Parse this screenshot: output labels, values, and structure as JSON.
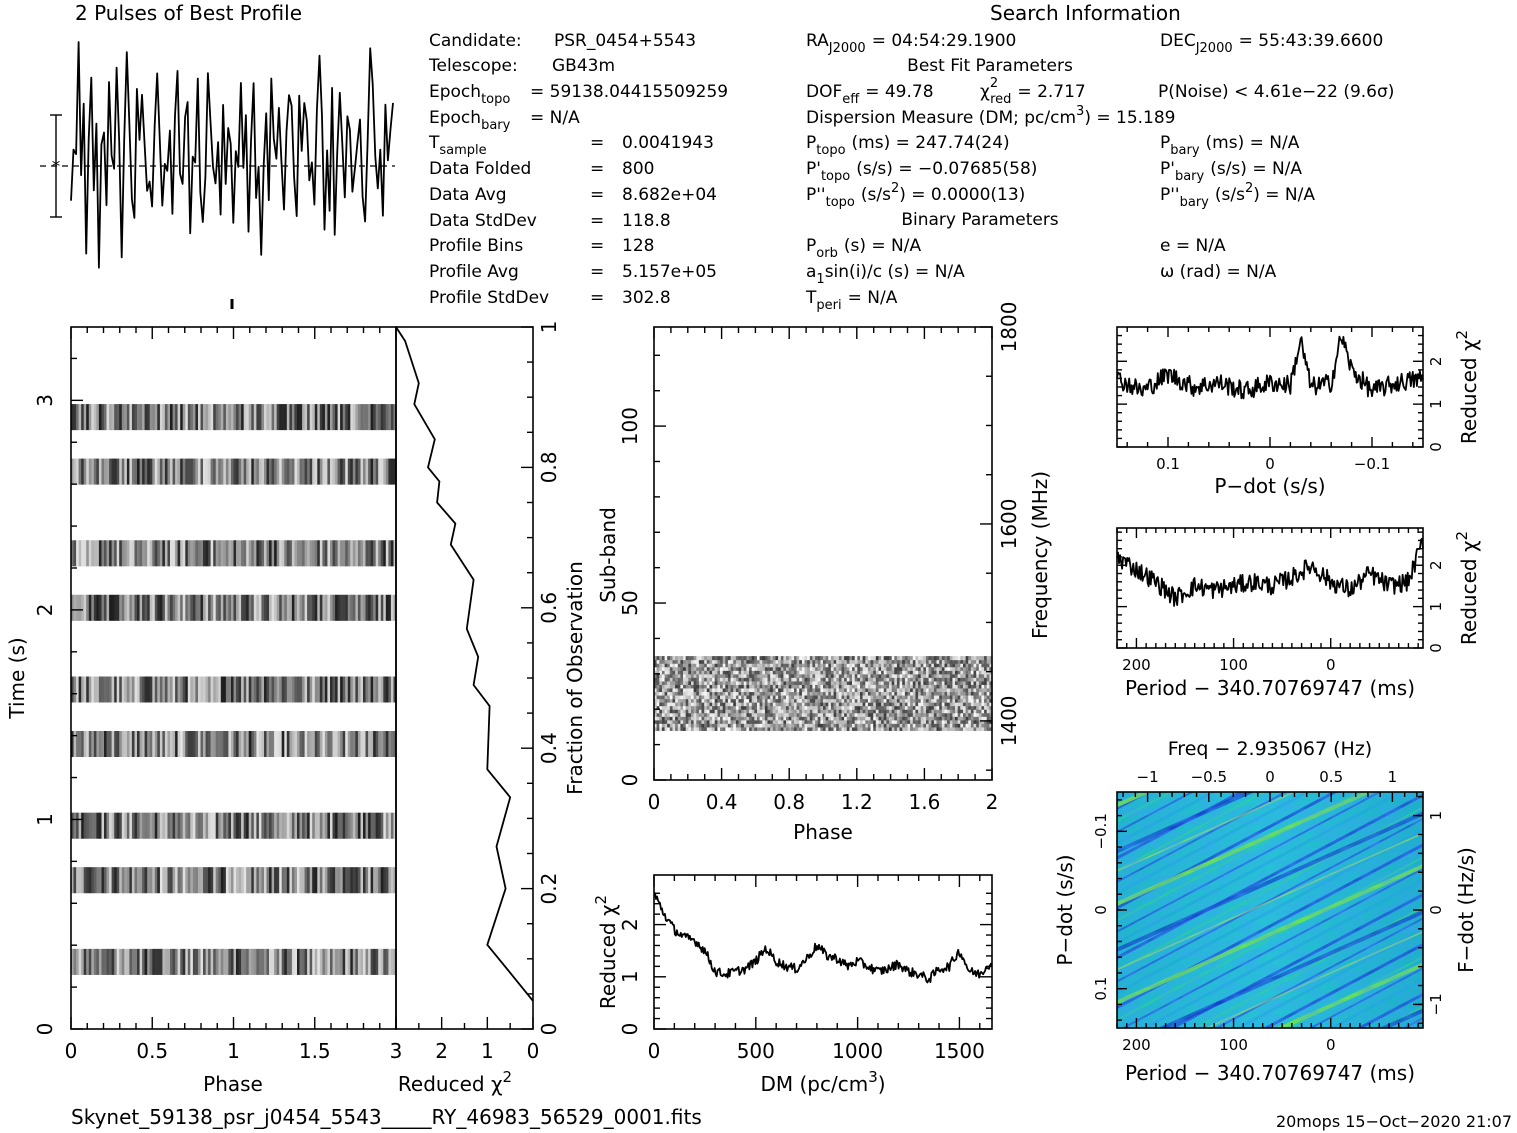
{
  "profile_title": "2 Pulses of Best Profile",
  "search_title": "Search Information",
  "candidate": {
    "label": "Candidate:",
    "value": "PSR_0454+5543"
  },
  "telescope": {
    "label": "Telescope:",
    "value": "GB43m"
  },
  "epoch_topo": {
    "main": "Epoch",
    "sub": "topo",
    "value": "= 59138.04415509259"
  },
  "epoch_bary": {
    "main": "Epoch",
    "sub": "bary",
    "value": "= N/A"
  },
  "t_sample": {
    "main": "T",
    "sub": "sample",
    "eq": "=",
    "value": "0.0041943"
  },
  "data_folded": {
    "label": "Data Folded",
    "eq": "=",
    "value": "800"
  },
  "data_avg": {
    "label": "Data Avg",
    "eq": "=",
    "value": "8.682e+04"
  },
  "data_stddev": {
    "label": "Data StdDev",
    "eq": "=",
    "value": "118.8"
  },
  "profile_bins": {
    "label": "Profile Bins",
    "eq": "=",
    "value": "128"
  },
  "profile_avg": {
    "label": "Profile Avg",
    "eq": "=",
    "value": "5.157e+05"
  },
  "profile_stddev": {
    "label": "Profile StdDev",
    "eq": "=",
    "value": "302.8"
  },
  "ra": {
    "main": "RA",
    "sub": "J2000",
    "value": "= 04:54:29.1900"
  },
  "dec": {
    "main": "DEC",
    "sub": "J2000",
    "value": "= 55:43:39.6600"
  },
  "best_fit_title": "Best Fit Parameters",
  "dof": {
    "main": "DOF",
    "sub": "eff",
    "value": "= 49.78"
  },
  "chi2": {
    "main": "χ",
    "sup": "2",
    "sub": "red",
    "value": "= 2.717"
  },
  "pnoise": "P(Noise) < 4.61e−22   (9.6σ)",
  "dm_line": {
    "pre": "Dispersion Measure (DM; pc/cm",
    "sup": "3",
    "post": ") = 15.189"
  },
  "p_topo": {
    "main": "P",
    "sub": "topo",
    "value": "(ms) =  247.74(24)"
  },
  "pd_topo": {
    "main": "P'",
    "sub": "topo",
    "value": "(s/s) = −0.07685(58)"
  },
  "pdd_topo": {
    "main": "P''",
    "sub": "topo",
    "value": "(s/s",
    "sup": "2",
    "post": ") =  0.0000(13)"
  },
  "p_bary": {
    "main": "P",
    "sub": "bary",
    "value": "(ms) = N/A"
  },
  "pd_bary": {
    "main": "P'",
    "sub": "bary",
    "value": "(s/s) = N/A"
  },
  "pdd_bary": {
    "main": "P''",
    "sub": "bary",
    "value": "(s/s",
    "sup": "2",
    "post": ") = N/A"
  },
  "binary_title": "Binary Parameters",
  "p_orb": {
    "main": "P",
    "sub": "orb",
    "value": "(s) = N/A"
  },
  "a1sini": {
    "pre": "a",
    "sub": "1",
    "post": "sin(i)/c (s) = N/A"
  },
  "t_peri": {
    "main": "T",
    "sub": "peri",
    "value": "= N/A"
  },
  "ecc": "e = N/A",
  "omega": "ω (rad) = N/A",
  "filename": "Skynet_59138_psr_j0454_5543_____RY_46983_56529_0001.fits",
  "footer_stamp": "20mops 15−Oct−2020 21:07",
  "chart_data": [
    {
      "type": "line",
      "id": "profile",
      "title": "2 Pulses of Best Profile",
      "x": "phase 0–2 (256 bins)",
      "values": [
        0.3,
        0.6,
        0.5,
        0.9,
        0.4,
        0.7,
        0.2,
        0.5,
        0.8,
        0.3,
        0.6,
        0.1,
        0.5,
        0.7,
        0.3,
        0.9,
        0.6,
        0.4,
        0.8,
        0.5,
        0.2,
        0.6,
        0.9,
        0.7,
        0.4,
        0.3,
        0.7,
        0.5,
        0.8,
        0.6,
        0.3,
        0.5,
        0.4,
        0.7,
        0.9,
        0.6,
        0.2,
        0.5,
        0.4,
        0.7,
        0.3,
        0.6,
        0.8,
        0.5,
        0.4,
        0.6,
        0.7,
        0.3,
        0.5,
        0.6,
        0.8,
        0.4,
        0.2,
        0.5,
        0.9,
        0.7,
        0.5,
        0.3,
        0.6,
        0.4,
        0.8,
        0.5,
        0.6,
        0.7
      ]
    },
    {
      "type": "heatmap",
      "id": "time_phase",
      "xlabel": "Phase",
      "ylabel": "Time (s)",
      "xlim": [
        0,
        2
      ],
      "ylim": [
        0,
        3.35
      ],
      "x_ticks": [
        0,
        0.5,
        1,
        1.5
      ],
      "y_ticks": [
        0,
        1,
        2,
        3
      ],
      "rows_time_s": [
        0.32,
        0.71,
        0.97,
        1.36,
        1.62,
        2.01,
        2.27,
        2.66,
        2.92
      ]
    },
    {
      "type": "line",
      "id": "time_chi2",
      "xlabel": "Reduced χ²",
      "ylabel": "Fraction of Observation",
      "xlim": [
        3,
        0
      ],
      "ylim": [
        0,
        1
      ],
      "x_ticks": [
        3,
        2,
        1,
        0
      ],
      "x_minor": [
        2.5,
        1.5,
        0.5
      ],
      "y_ticks": [
        0,
        0.2,
        0.4,
        0.6,
        0.8,
        1
      ],
      "x": [
        0,
        0.5,
        1,
        0.6,
        0.8,
        0.5,
        1,
        0.95,
        1.3,
        1.2,
        1.45,
        1.3,
        1.8,
        1.7,
        2.1,
        2.05,
        2.3,
        2.15,
        2.6,
        2.5,
        2.7,
        2.8,
        3.0
      ],
      "y": [
        0.04,
        0.08,
        0.12,
        0.2,
        0.26,
        0.33,
        0.37,
        0.46,
        0.49,
        0.53,
        0.57,
        0.64,
        0.69,
        0.72,
        0.75,
        0.78,
        0.8,
        0.84,
        0.89,
        0.92,
        0.96,
        0.98,
        1.0
      ]
    },
    {
      "type": "heatmap",
      "id": "subband_phase",
      "xlabel": "Phase",
      "ylabel": "Sub-band",
      "y2label": "Frequency (MHz)",
      "xlim": [
        0,
        2
      ],
      "ylim": [
        0,
        128
      ],
      "x_ticks": [
        0,
        0.4,
        0.8,
        1.2,
        1.6,
        2
      ],
      "y_ticks": [
        0,
        50,
        100
      ],
      "y2_ticks": [
        1400,
        1600,
        1800
      ],
      "filled_subbands": [
        14,
        35
      ]
    },
    {
      "type": "line",
      "id": "dm_chi2",
      "xlabel": "DM (pc/cm³)",
      "ylabel": "Reduced χ²",
      "xlim": [
        0,
        1660
      ],
      "ylim": [
        0,
        2.95
      ],
      "x_ticks": [
        0,
        500,
        1000,
        1500
      ],
      "y_ticks": [
        0,
        1,
        2
      ],
      "x": [
        0,
        50,
        100,
        150,
        200,
        250,
        300,
        350,
        400,
        450,
        500,
        550,
        600,
        650,
        700,
        750,
        800,
        850,
        900,
        950,
        1000,
        1050,
        1100,
        1150,
        1200,
        1250,
        1300,
        1350,
        1400,
        1450,
        1500,
        1550,
        1600,
        1660
      ],
      "y": [
        2.6,
        2.2,
        1.9,
        1.75,
        1.7,
        1.5,
        1.1,
        1.05,
        1.1,
        1.15,
        1.3,
        1.55,
        1.3,
        1.2,
        1.15,
        1.35,
        1.6,
        1.4,
        1.35,
        1.2,
        1.3,
        1.2,
        1.1,
        1.15,
        1.25,
        1.1,
        1.05,
        0.95,
        1.15,
        1.2,
        1.5,
        1.1,
        1.05,
        1.3
      ]
    },
    {
      "type": "line",
      "id": "pdot_chi2",
      "xlabel": "P−dot (s/s)",
      "ylabel": "Reduced χ²",
      "xlim": [
        0.15,
        -0.15
      ],
      "ylim": [
        0,
        2.8
      ],
      "x_ticks": [
        0.1,
        0,
        -0.1
      ],
      "y_ticks": [
        0,
        1,
        2
      ],
      "x": [
        0.15,
        0.125,
        0.1,
        0.075,
        0.05,
        0.025,
        0,
        -0.02,
        -0.03,
        -0.04,
        -0.06,
        -0.07,
        -0.08,
        -0.1,
        -0.125,
        -0.15
      ],
      "y": [
        1.6,
        1.3,
        1.7,
        1.4,
        1.5,
        1.3,
        1.5,
        1.45,
        2.5,
        1.4,
        1.5,
        2.6,
        1.8,
        1.3,
        1.5,
        1.6
      ]
    },
    {
      "type": "line",
      "id": "period_chi2",
      "xlabel": "Period − 340.70769747 (ms)",
      "ylabel": "Reduced χ²",
      "xlim": [
        220,
        -95
      ],
      "ylim": [
        0,
        2.9
      ],
      "x_ticks": [
        200,
        100,
        0
      ],
      "y_ticks": [
        0,
        1,
        2
      ],
      "x": [
        220,
        200,
        180,
        160,
        140,
        120,
        100,
        80,
        60,
        40,
        20,
        0,
        -20,
        -40,
        -60,
        -80,
        -95
      ],
      "y": [
        2.2,
        1.9,
        1.6,
        1.2,
        1.5,
        1.4,
        1.5,
        1.6,
        1.5,
        1.7,
        2.0,
        1.6,
        1.4,
        1.8,
        1.5,
        1.6,
        2.6
      ]
    },
    {
      "type": "heatmap",
      "id": "ppdot_plane",
      "title": "Freq − 2.935067 (Hz)",
      "xlabel": "Period − 340.70769747 (ms)",
      "ylabel": "P−dot (s/s)",
      "y2label": "F−dot (Hz/s)",
      "xlim": [
        220,
        -95
      ],
      "x2lim": [
        -1.25,
        1.25
      ],
      "x_ticks": [
        200,
        100,
        0
      ],
      "x2_ticks": [
        -1,
        -0.5,
        0,
        0.5,
        1
      ],
      "y_ticks": [
        -0.1,
        0,
        0.1
      ],
      "y2_ticks": [
        1,
        0,
        -1
      ]
    }
  ]
}
